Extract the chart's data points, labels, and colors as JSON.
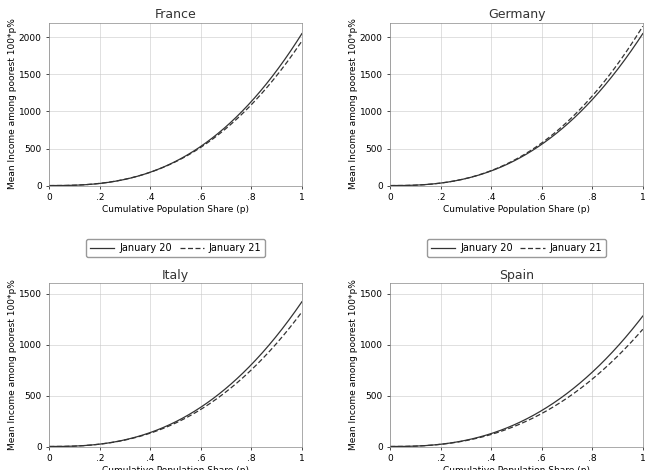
{
  "countries": [
    "France",
    "Germany",
    "Italy",
    "Spain"
  ],
  "xlabel": "Cumulative Population Share (p)",
  "ylabel": "Mean Income among poorest 100*p%",
  "legend_labels": [
    "January 20",
    "January 21"
  ],
  "line_color": "#333333",
  "grid_color": "#c8c8c8",
  "background_color": "#ffffff",
  "xticks": [
    0,
    0.2,
    0.4,
    0.6,
    0.8,
    1.0
  ],
  "xtick_labels": [
    "0",
    ".2",
    ".4",
    ".6",
    ".8",
    "1"
  ],
  "france": {
    "ylim": [
      0,
      2200
    ],
    "yticks": [
      0,
      500,
      1000,
      1500,
      2000
    ],
    "jan20_scale": 2050,
    "jan20_power": 2.65,
    "jan21_scale": 1950,
    "jan21_power": 2.6
  },
  "germany": {
    "ylim": [
      0,
      2200
    ],
    "yticks": [
      0,
      500,
      1000,
      1500,
      2000
    ],
    "jan20_scale": 2050,
    "jan20_power": 2.55,
    "jan21_scale": 2150,
    "jan21_power": 2.58
  },
  "italy": {
    "ylim": [
      0,
      1600
    ],
    "yticks": [
      0,
      500,
      1000,
      1500
    ],
    "jan20_scale": 1420,
    "jan20_power": 2.55,
    "jan21_scale": 1320,
    "jan21_power": 2.52
  },
  "spain": {
    "ylim": [
      0,
      1600
    ],
    "yticks": [
      0,
      500,
      1000,
      1500
    ],
    "jan20_scale": 1280,
    "jan20_power": 2.52,
    "jan21_scale": 1150,
    "jan21_power": 2.48
  },
  "title_fontsize": 9,
  "label_fontsize": 6.5,
  "tick_fontsize": 6.5,
  "legend_fontsize": 7,
  "linewidth": 0.9
}
